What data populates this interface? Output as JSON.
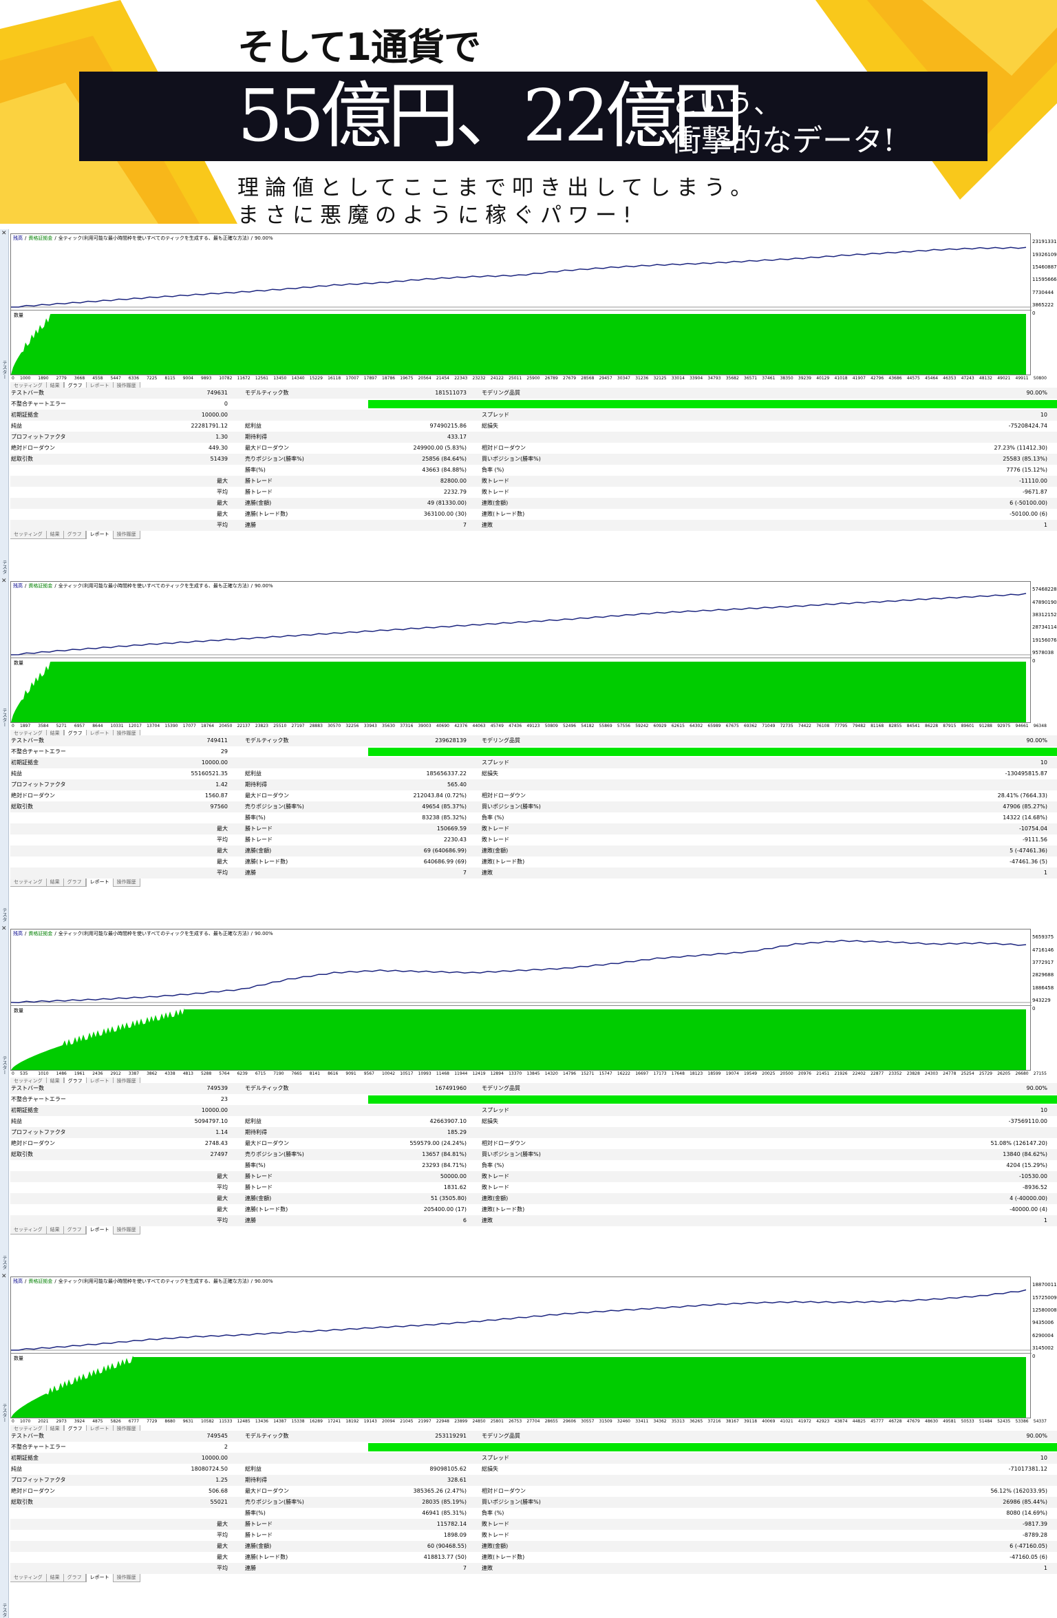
{
  "colors": {
    "accent_yellow": "#f9c81b",
    "band": "#10101c",
    "equity_line": "#1a237e",
    "volume_green": "#00cc00",
    "quality_bar": "#00e600"
  },
  "header": {
    "line1": "そして1通貨で",
    "big": "55億円、22億円",
    "side1": "という、",
    "side2": "衝撃的なデータ!",
    "sub1": "理論値としてここまで叩き出してしまう。",
    "sub2": "まさに悪魔のように稼ぐパワー!"
  },
  "common": {
    "chart_header": {
      "a": "残高",
      "b": "/",
      "c": "資格証拠金",
      "d": "/",
      "e": "全ティック(利用可能な最小時間枠を使いすべてのティックを生成する、最も正確な方法)",
      "f": "/",
      "g": "90.00%"
    },
    "volume_label": "数量",
    "side_close": "✕",
    "side_label": "テスター",
    "tabs": [
      "セッティング",
      "結果",
      "グラフ",
      "レポート",
      "操作履歴"
    ],
    "labels": {
      "bars": "テストバー数",
      "ticks": "モデルティック数",
      "quality": "モデリング品質",
      "errors": "不整合チャートエラー",
      "deposit": "初期証拠金",
      "spread": "スプレッド",
      "net": "純益",
      "gross_profit": "総利益",
      "gross_loss": "総損失",
      "pf": "プロフィットファクタ",
      "expected": "期待利得",
      "abs_dd": "絶対ドローダウン",
      "max_dd": "最大ドローダウン",
      "rel_dd": "相対ドローダウン",
      "trades": "総取引数",
      "short": "売りポジション(勝率%)",
      "long": "買いポジション(勝率%)",
      "win": "勝率(%)",
      "loss": "負率 (%)",
      "max": "最大",
      "avg": "平均",
      "win_trade": "勝トレード",
      "loss_trade": "敗トレード",
      "cons_win_amt": "連勝(金額)",
      "cons_loss_amt": "連敗(金額)",
      "cons_win_cnt": "連勝(トレード数)",
      "cons_loss_cnt": "連敗(トレード数)",
      "cons_win": "連勝",
      "cons_loss": "連敗"
    }
  },
  "reports": [
    {
      "yticks": [
        "23191331",
        "19326109",
        "15460887",
        "11595666",
        "7730444",
        "3865222",
        "0"
      ],
      "xticks": [
        "1000",
        "1890",
        "2779",
        "3668",
        "4558",
        "5447",
        "6336",
        "7225",
        "8115",
        "9004",
        "9893",
        "10782",
        "11672",
        "12561",
        "13450",
        "14340",
        "15229",
        "16118",
        "17007",
        "17897",
        "18786",
        "19675",
        "20564",
        "21454",
        "22343",
        "23232",
        "24122",
        "25011",
        "25900",
        "26789",
        "27679",
        "28568",
        "29457",
        "30347",
        "31236",
        "32125",
        "33014",
        "33904",
        "34793",
        "35682",
        "36571",
        "37461",
        "38350",
        "39239",
        "40129",
        "41018",
        "41907",
        "42796",
        "43686",
        "44575",
        "45464",
        "46353",
        "47243",
        "48132",
        "49021",
        "49911",
        "50800"
      ],
      "chart_data": {
        "type": "line",
        "yrange": [
          0,
          23191331
        ],
        "ylim": [
          0,
          25000000
        ],
        "equity": [
          10000,
          1200000,
          2400000,
          3600000,
          4700000,
          5700000,
          6900000,
          8300000,
          9200000,
          10600000,
          11500000,
          12000000,
          13800000,
          15000000,
          15900000,
          16500000,
          17400000,
          18300000,
          19500000,
          20500000,
          21600000,
          22300000,
          22400000
        ],
        "volume_ramp": 0.04
      },
      "values": {
        "bars": "749631",
        "ticks": "181511073",
        "quality": "90.00%",
        "errors": "0",
        "deposit": "10000.00",
        "spread": "10",
        "net": "22281791.12",
        "gross_profit": "97490215.86",
        "gross_loss": "-75208424.74",
        "pf": "1.30",
        "expected": "433.17",
        "abs_dd": "449.30",
        "max_dd": "249900.00 (5.83%)",
        "rel_dd": "27.23% (11412.30)",
        "trades": "51439",
        "short": "25856 (84.64%)",
        "long": "25583 (85.13%)",
        "win": "43663 (84.88%)",
        "loss": "7776 (15.12%)",
        "max_win": "82800.00",
        "max_loss": "-11110.00",
        "avg_win": "2232.79",
        "avg_loss": "-9671.87",
        "cw_amt": "49 (81330.00)",
        "cl_amt": "6 (-50100.00)",
        "cw_cnt": "363100.00 (30)",
        "cl_cnt": "-50100.00 (6)",
        "cw": "7",
        "cl": "1"
      }
    },
    {
      "yticks": [
        "57468228",
        "47890190",
        "38312152",
        "28734114",
        "19156076",
        "9578038",
        "0"
      ],
      "xticks": [
        "1897",
        "3584",
        "5271",
        "6957",
        "8644",
        "10331",
        "12017",
        "13704",
        "15390",
        "17077",
        "18764",
        "20450",
        "22137",
        "23823",
        "25510",
        "27197",
        "28883",
        "30570",
        "32256",
        "33943",
        "35630",
        "37316",
        "39003",
        "40690",
        "42376",
        "44063",
        "45749",
        "47436",
        "49123",
        "50809",
        "52496",
        "54182",
        "55869",
        "57556",
        "59242",
        "60929",
        "62615",
        "64302",
        "65989",
        "67675",
        "69362",
        "71049",
        "72735",
        "74422",
        "76108",
        "77795",
        "79482",
        "81168",
        "82855",
        "84541",
        "86228",
        "87915",
        "89601",
        "91288",
        "92975",
        "94661",
        "96348"
      ],
      "chart_data": {
        "type": "line",
        "yrange": [
          0,
          57468228
        ],
        "ylim": [
          0,
          60000000
        ],
        "equity": [
          10000,
          3500000,
          6500000,
          9500000,
          12000000,
          14500000,
          17000000,
          19500000,
          22000000,
          24500000,
          27000000,
          29500000,
          32000000,
          35000000,
          38000000,
          40000000,
          42000000,
          44000000,
          46500000,
          48500000,
          51000000,
          53000000,
          55160521
        ],
        "volume_ramp": 0.04
      },
      "values": {
        "bars": "749411",
        "ticks": "239628139",
        "quality": "90.00%",
        "errors": "29",
        "deposit": "10000.00",
        "spread": "10",
        "net": "55160521.35",
        "gross_profit": "185656337.22",
        "gross_loss": "-130495815.87",
        "pf": "1.42",
        "expected": "565.40",
        "abs_dd": "1560.87",
        "max_dd": "212043.84 (0.72%)",
        "rel_dd": "28.41% (7664.33)",
        "trades": "97560",
        "short": "49654 (85.37%)",
        "long": "47906 (85.27%)",
        "win": "83238 (85.32%)",
        "loss": "14322 (14.68%)",
        "max_win": "150669.59",
        "max_loss": "-10754.04",
        "avg_win": "2230.43",
        "avg_loss": "-9111.56",
        "cw_amt": "69 (640686.99)",
        "cl_amt": "5 (-47461.36)",
        "cw_cnt": "640686.99 (69)",
        "cl_cnt": "-47461.36 (5)",
        "cw": "7",
        "cl": "1"
      }
    },
    {
      "yticks": [
        "5659375",
        "4716146",
        "3772917",
        "2829688",
        "1886458",
        "943229",
        "0"
      ],
      "xticks": [
        "535",
        "1010",
        "1486",
        "1961",
        "2436",
        "2912",
        "3387",
        "3862",
        "4338",
        "4813",
        "5288",
        "5764",
        "6239",
        "6715",
        "7190",
        "7665",
        "8141",
        "8616",
        "9091",
        "9567",
        "10042",
        "10517",
        "10993",
        "11468",
        "11944",
        "12419",
        "12894",
        "13370",
        "13845",
        "14320",
        "14796",
        "15271",
        "15747",
        "16222",
        "16697",
        "17173",
        "17648",
        "18123",
        "18599",
        "19074",
        "19549",
        "20025",
        "20500",
        "20976",
        "21451",
        "21926",
        "22402",
        "22877",
        "23352",
        "23828",
        "24303",
        "24778",
        "25254",
        "25729",
        "26205",
        "26680",
        "27155"
      ],
      "chart_data": {
        "type": "line",
        "yrange": [
          0,
          5659375
        ],
        "ylim": [
          0,
          6000000
        ],
        "equity": [
          10000,
          150000,
          300000,
          500000,
          800000,
          1200000,
          2100000,
          2700000,
          2900000,
          2800000,
          2700000,
          2900000,
          3100000,
          3500000,
          4000000,
          4300000,
          4600000,
          5300000,
          5600000,
          5500000,
          5300000,
          5400000,
          5200000
        ],
        "volume_ramp": 0.17
      },
      "values": {
        "bars": "749539",
        "ticks": "167491960",
        "quality": "90.00%",
        "errors": "23",
        "deposit": "10000.00",
        "spread": "10",
        "net": "5094797.10",
        "gross_profit": "42663907.10",
        "gross_loss": "-37569110.00",
        "pf": "1.14",
        "expected": "185.29",
        "abs_dd": "2748.43",
        "max_dd": "559579.00 (24.24%)",
        "rel_dd": "51.08% (126147.20)",
        "trades": "27497",
        "short": "13657 (84.81%)",
        "long": "13840 (84.62%)",
        "win": "23293 (84.71%)",
        "loss": "4204 (15.29%)",
        "max_win": "50000.00",
        "max_loss": "-10530.00",
        "avg_win": "1831.62",
        "avg_loss": "-8936.52",
        "cw_amt": "51 (3505.80)",
        "cl_amt": "4 (-40000.00)",
        "cw_cnt": "205400.00 (17)",
        "cl_cnt": "-40000.00 (4)",
        "cw": "6",
        "cl": "1"
      }
    },
    {
      "yticks": [
        "18870011",
        "15725009",
        "12580008",
        "9435006",
        "6290004",
        "3145002",
        "0"
      ],
      "xticks": [
        "1070",
        "2021",
        "2973",
        "3924",
        "4875",
        "5826",
        "6777",
        "7729",
        "8680",
        "9631",
        "10582",
        "11533",
        "12485",
        "13436",
        "14387",
        "15338",
        "16289",
        "17241",
        "18192",
        "19143",
        "20094",
        "21045",
        "21997",
        "22948",
        "23899",
        "24850",
        "25801",
        "26753",
        "27704",
        "28655",
        "29606",
        "30557",
        "31509",
        "32460",
        "33411",
        "34362",
        "35313",
        "36265",
        "37216",
        "38167",
        "39118",
        "40069",
        "41021",
        "41972",
        "42923",
        "43874",
        "44825",
        "45777",
        "46728",
        "47679",
        "48630",
        "49581",
        "50533",
        "51484",
        "52435",
        "53386",
        "54337"
      ],
      "chart_data": {
        "type": "line",
        "yrange": [
          0,
          18870011
        ],
        "ylim": [
          0,
          20000000
        ],
        "equity": [
          10000,
          900000,
          2000000,
          3200000,
          4100000,
          4600000,
          5400000,
          6100000,
          6900000,
          7600000,
          8600000,
          9800000,
          11000000,
          11900000,
          12700000,
          13600000,
          14300000,
          14600000,
          14500000,
          14700000,
          15400000,
          16400000,
          18080724
        ],
        "volume_ramp": 0.12
      },
      "values": {
        "bars": "749545",
        "ticks": "253119291",
        "quality": "90.00%",
        "errors": "2",
        "deposit": "10000.00",
        "spread": "10",
        "net": "18080724.50",
        "gross_profit": "89098105.62",
        "gross_loss": "-71017381.12",
        "pf": "1.25",
        "expected": "328.61",
        "abs_dd": "506.68",
        "max_dd": "385365.26 (2.47%)",
        "rel_dd": "56.12% (162033.95)",
        "trades": "55021",
        "short": "28035 (85.19%)",
        "long": "26986 (85.44%)",
        "win": "46941 (85.31%)",
        "loss": "8080 (14.69%)",
        "max_win": "115782.14",
        "max_loss": "-9817.39",
        "avg_win": "1898.09",
        "avg_loss": "-8789.28",
        "cw_amt": "60 (90468.55)",
        "cl_amt": "6 (-47160.05)",
        "cw_cnt": "418813.77 (50)",
        "cl_cnt": "-47160.05 (6)",
        "cw": "7",
        "cl": "1"
      }
    }
  ]
}
